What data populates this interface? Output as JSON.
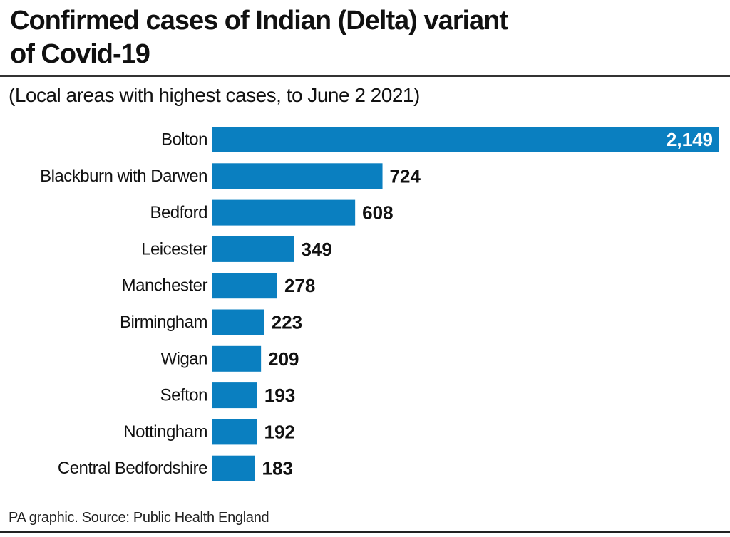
{
  "header": {
    "title_line1": "Confirmed cases of Indian (Delta) variant",
    "title_line2": "of Covid-19",
    "subtitle": "(Local areas with highest cases, to June 2 2021)"
  },
  "footer": {
    "source": "PA graphic. Source: Public Health England"
  },
  "colors": {
    "bar": "#0a7fc0",
    "text": "#111111",
    "inside_label": "#ffffff"
  },
  "chart_data": {
    "type": "bar",
    "orientation": "horizontal",
    "title": "Confirmed cases of Indian (Delta) variant of Covid-19",
    "subtitle": "(Local areas with highest cases, to June 2 2021)",
    "xlabel": "",
    "ylabel": "",
    "grid": false,
    "legend": "none",
    "xlim": [
      0,
      2149
    ],
    "categories": [
      "Bolton",
      "Blackburn with Darwen",
      "Bedford",
      "Leicester",
      "Manchester",
      "Birmingham",
      "Wigan",
      "Sefton",
      "Nottingham",
      "Central Bedfordshire"
    ],
    "values": [
      2149,
      724,
      608,
      349,
      278,
      223,
      209,
      193,
      192,
      183
    ],
    "value_labels": [
      "2,149",
      "724",
      "608",
      "349",
      "278",
      "223",
      "209",
      "193",
      "192",
      "183"
    ]
  }
}
